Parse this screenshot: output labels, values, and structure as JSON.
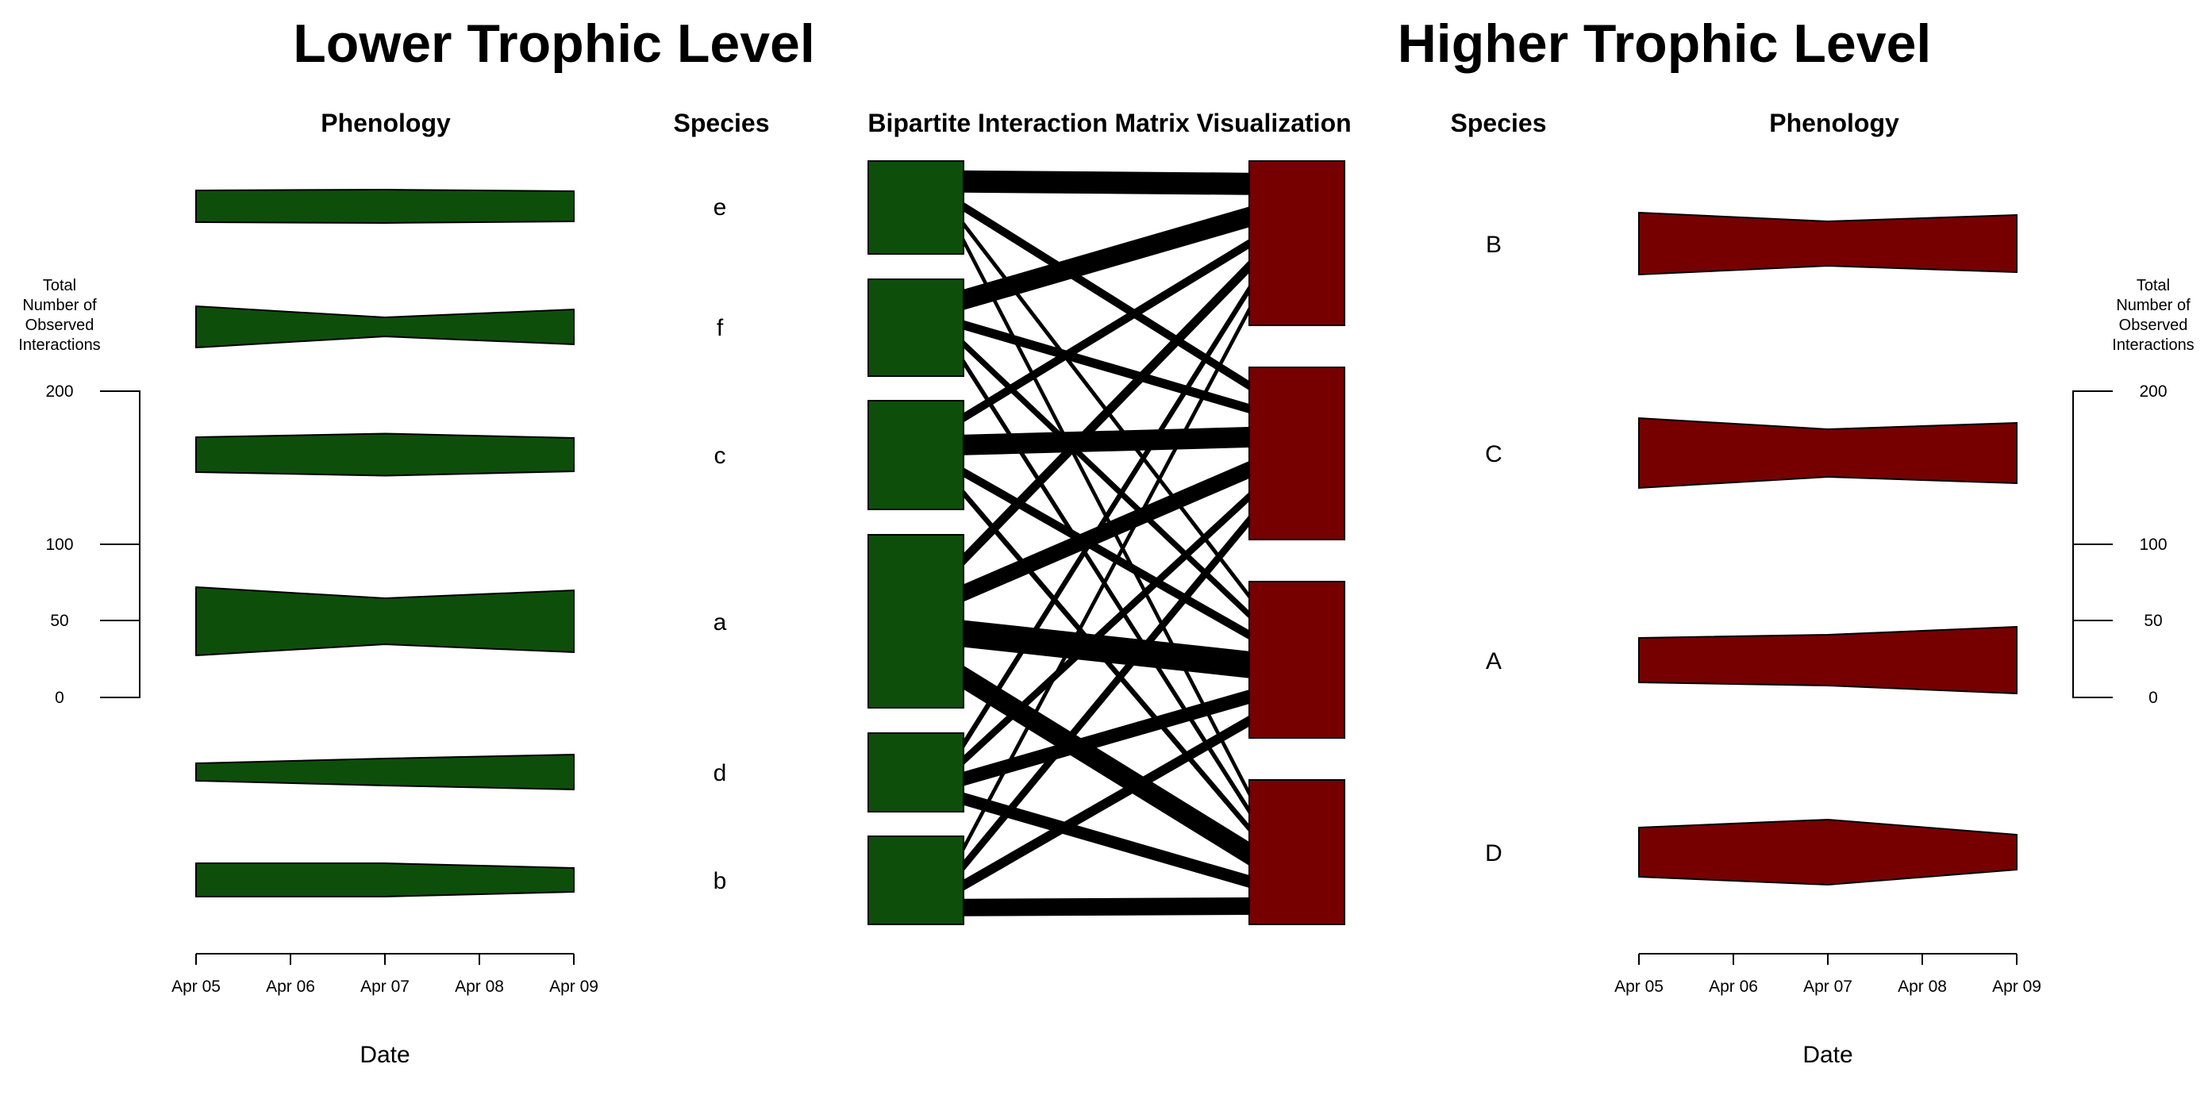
{
  "titles": {
    "lower": "Lower Trophic Level",
    "higher": "Higher Trophic Level",
    "phenology_left": "Phenology",
    "species_left": "Species",
    "matrix": "Bipartite Interaction Matrix Visualization",
    "species_right": "Species",
    "phenology_right": "Phenology"
  },
  "axes": {
    "date_label_left": "Date",
    "date_label_right": "Date",
    "legend_title_left": [
      "Total",
      "Number of",
      "Observed",
      "Interactions"
    ],
    "legend_title_right": [
      "Total",
      "Number of",
      "Observed",
      "Interactions"
    ],
    "legend_ticks": [
      "200",
      "100",
      "50",
      "0"
    ]
  },
  "colors": {
    "lower": "#0d4f0a",
    "higher": "#760000",
    "links": "#000000"
  },
  "chart_data": {
    "type": "bipartite",
    "dates": [
      "Apr 05",
      "Apr 06",
      "Apr 07",
      "Apr 08",
      "Apr 09"
    ],
    "interaction_scale": [
      0,
      50,
      100,
      200
    ],
    "lower_species": [
      {
        "name": "e",
        "width": [
          40,
          42,
          38
        ]
      },
      {
        "name": "f",
        "width": [
          52,
          24,
          44
        ]
      },
      {
        "name": "c",
        "width": [
          44,
          53,
          42
        ]
      },
      {
        "name": "a",
        "width": [
          86,
          58,
          78
        ]
      },
      {
        "name": "d",
        "width": [
          22,
          34,
          44
        ]
      },
      {
        "name": "b",
        "width": [
          42,
          42,
          30
        ]
      }
    ],
    "higher_species": [
      {
        "name": "B",
        "width": [
          78,
          56,
          72
        ]
      },
      {
        "name": "C",
        "width": [
          88,
          60,
          76
        ]
      },
      {
        "name": "A",
        "width": [
          56,
          64,
          84
        ]
      },
      {
        "name": "D",
        "width": [
          62,
          82,
          44
        ]
      }
    ],
    "links": [
      {
        "from": "e",
        "to": "B",
        "width": 28
      },
      {
        "from": "e",
        "to": "C",
        "width": 12
      },
      {
        "from": "e",
        "to": "A",
        "width": 8
      },
      {
        "from": "e",
        "to": "D",
        "width": 10
      },
      {
        "from": "f",
        "to": "B",
        "width": 26
      },
      {
        "from": "f",
        "to": "C",
        "width": 12
      },
      {
        "from": "f",
        "to": "D",
        "width": 10
      },
      {
        "from": "f",
        "to": "A",
        "width": 10
      },
      {
        "from": "c",
        "to": "B",
        "width": 12
      },
      {
        "from": "c",
        "to": "C",
        "width": 26
      },
      {
        "from": "c",
        "to": "A",
        "width": 12
      },
      {
        "from": "c",
        "to": "D",
        "width": 10
      },
      {
        "from": "a",
        "to": "B",
        "width": 16
      },
      {
        "from": "a",
        "to": "C",
        "width": 22
      },
      {
        "from": "a",
        "to": "A",
        "width": 34
      },
      {
        "from": "a",
        "to": "D",
        "width": 30
      },
      {
        "from": "d",
        "to": "B",
        "width": 12
      },
      {
        "from": "d",
        "to": "C",
        "width": 12
      },
      {
        "from": "d",
        "to": "A",
        "width": 18
      },
      {
        "from": "d",
        "to": "D",
        "width": 16
      },
      {
        "from": "b",
        "to": "B",
        "width": 10
      },
      {
        "from": "b",
        "to": "C",
        "width": 14
      },
      {
        "from": "b",
        "to": "A",
        "width": 14
      },
      {
        "from": "b",
        "to": "D",
        "width": 22
      }
    ]
  }
}
